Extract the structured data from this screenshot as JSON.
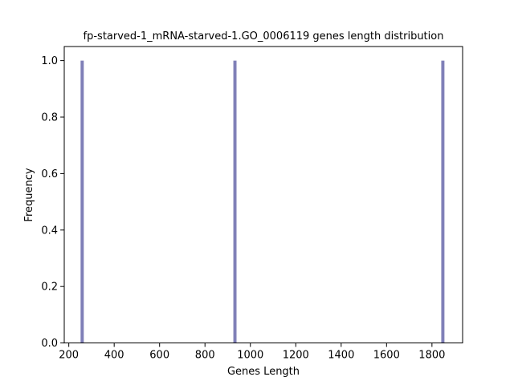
{
  "chart_data": {
    "type": "bar",
    "title": "fp-starved-1_mRNA-starved-1.GO_0006119 genes length distribution",
    "xlabel": "Genes Length",
    "ylabel": "Frequency",
    "xlim": [
      180,
      1935
    ],
    "ylim": [
      0,
      1.05
    ],
    "x_ticks": [
      200,
      400,
      600,
      800,
      1000,
      1200,
      1400,
      1600,
      1800
    ],
    "x_tick_labels": [
      "200",
      "400",
      "600",
      "800",
      "1000",
      "1200",
      "1400",
      "1600",
      "1800"
    ],
    "y_ticks": [
      0.0,
      0.2,
      0.4,
      0.6,
      0.8,
      1.0
    ],
    "y_tick_labels": [
      "0.0",
      "0.2",
      "0.4",
      "0.6",
      "0.8",
      "1.0"
    ],
    "bars": [
      {
        "x_start": 252,
        "x_end": 266,
        "value": 1
      },
      {
        "x_start": 925,
        "x_end": 939,
        "value": 1
      },
      {
        "x_start": 1841,
        "x_end": 1855,
        "value": 1
      }
    ],
    "bar_color": "#8080b8",
    "grid": false,
    "legend": "none"
  }
}
